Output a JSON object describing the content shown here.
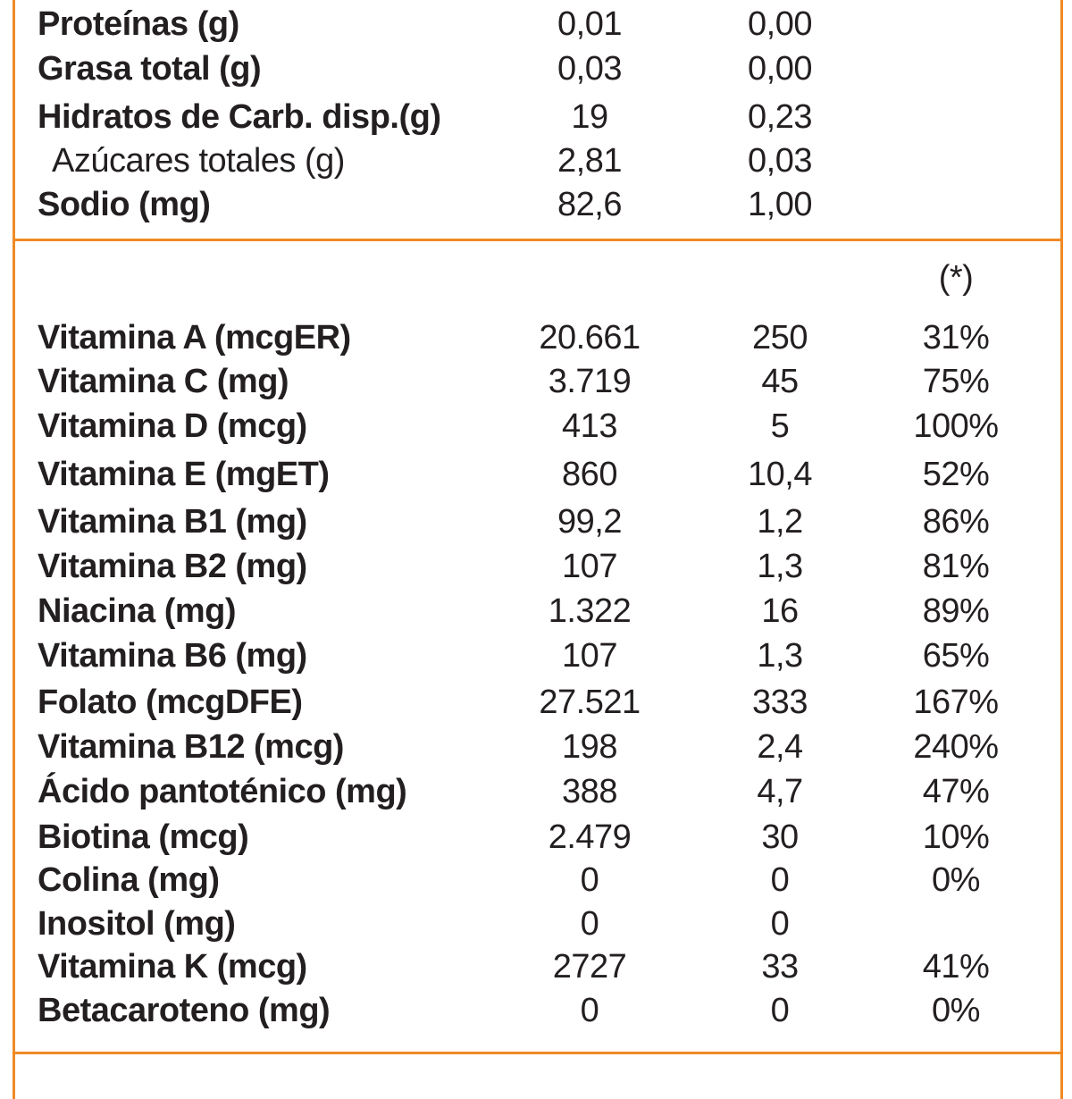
{
  "colors": {
    "border": "#f08a24",
    "text": "#231f20"
  },
  "macros": [
    {
      "label": "Proteínas (g)",
      "bold": true,
      "v1": "0,01",
      "v2": "0,00",
      "v3": ""
    },
    {
      "label": "Grasa total (g)",
      "bold": true,
      "v1": "0,03",
      "v2": "0,00",
      "v3": ""
    },
    {
      "label": "Hidratos de Carb. disp.(g)",
      "bold": true,
      "v1": "19",
      "v2": "0,23",
      "v3": ""
    },
    {
      "label": "Azúcares totales (g)",
      "bold": false,
      "v1": "2,81",
      "v2": "0,03",
      "v3": ""
    },
    {
      "label": "Sodio (mg)",
      "bold": true,
      "v1": "82,6",
      "v2": "1,00",
      "v3": ""
    }
  ],
  "vitamins_header": {
    "note": "(*)"
  },
  "vitamins": [
    {
      "label": "Vitamina A (mcgER)",
      "v1": "20.661",
      "v2": "250",
      "v3": "31%"
    },
    {
      "label": "Vitamina C (mg)",
      "v1": "3.719",
      "v2": "45",
      "v3": "75%"
    },
    {
      "label": "Vitamina D (mcg)",
      "v1": "413",
      "v2": "5",
      "v3": "100%"
    },
    {
      "label": "Vitamina E (mgET)",
      "v1": "860",
      "v2": "10,4",
      "v3": "52%"
    },
    {
      "label": "Vitamina B1 (mg)",
      "v1": "99,2",
      "v2": "1,2",
      "v3": "86%"
    },
    {
      "label": "Vitamina B2 (mg)",
      "v1": "107",
      "v2": "1,3",
      "v3": "81%"
    },
    {
      "label": "Niacina (mg)",
      "v1": "1.322",
      "v2": "16",
      "v3": "89%"
    },
    {
      "label": "Vitamina B6 (mg)",
      "v1": "107",
      "v2": "1,3",
      "v3": "65%"
    },
    {
      "label": "Folato (mcgDFE)",
      "v1": "27.521",
      "v2": "333",
      "v3": "167%"
    },
    {
      "label": "Vitamina B12 (mcg)",
      "v1": "198",
      "v2": "2,4",
      "v3": "240%"
    },
    {
      "label": "Ácido pantoténico (mg)",
      "v1": "388",
      "v2": "4,7",
      "v3": "47%"
    },
    {
      "label": "Biotina (mcg)",
      "v1": "2.479",
      "v2": "30",
      "v3": "10%"
    },
    {
      "label": "Colina (mg)",
      "v1": "0",
      "v2": "0",
      "v3": "0%"
    },
    {
      "label": "Inositol (mg)",
      "v1": "0",
      "v2": "0",
      "v3": ""
    },
    {
      "label": "Vitamina K (mcg)",
      "v1": "2727",
      "v2": "33",
      "v3": "41%"
    },
    {
      "label": "Betacaroteno (mg)",
      "v1": "0",
      "v2": "0",
      "v3": "0%"
    }
  ]
}
